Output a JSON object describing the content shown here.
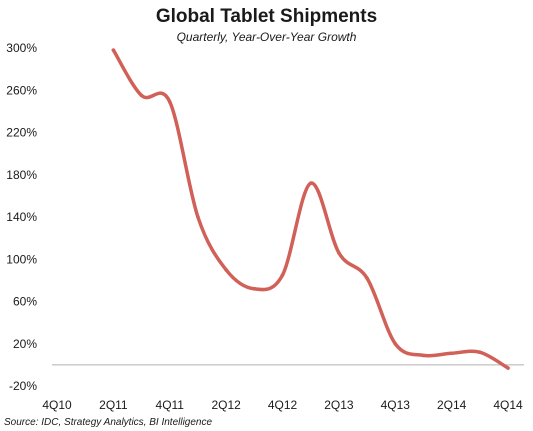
{
  "title": "Global Tablet Shipments",
  "subtitle": "Quarterly, Year-Over-Year Growth",
  "source": "Source: IDC, Strategy Analytics, BI Intelligence",
  "colors": {
    "line": "#d16158",
    "axis": "#b0b0b0",
    "text": "#1a1a1a"
  },
  "chart_data": {
    "type": "line",
    "title": "Global Tablet Shipments",
    "subtitle": "Quarterly, Year-Over-Year Growth",
    "xlabel": "",
    "ylabel": "",
    "ylim": [
      -20,
      300
    ],
    "yticks": [
      300,
      260,
      220,
      180,
      140,
      100,
      60,
      20,
      -20
    ],
    "ytick_labels": [
      "300%",
      "260%",
      "220%",
      "180%",
      "140%",
      "100%",
      "60%",
      "20%",
      "-20%"
    ],
    "categories": [
      "4Q10",
      "1Q11",
      "2Q11",
      "3Q11",
      "4Q11",
      "1Q12",
      "2Q12",
      "3Q12",
      "4Q12",
      "1Q13",
      "2Q13",
      "3Q13",
      "4Q13",
      "1Q14",
      "2Q14",
      "3Q14",
      "4Q14"
    ],
    "xtick_labels": [
      "4Q10",
      "2Q11",
      "4Q11",
      "2Q12",
      "4Q12",
      "2Q13",
      "4Q13",
      "2Q14",
      "4Q14"
    ],
    "grid": false,
    "legend": "none",
    "series": [
      {
        "values": [
          null,
          null,
          298,
          255,
          249,
          140,
          90,
          72,
          85,
          172,
          106,
          82,
          20,
          9,
          11,
          12,
          -3
        ]
      }
    ]
  }
}
